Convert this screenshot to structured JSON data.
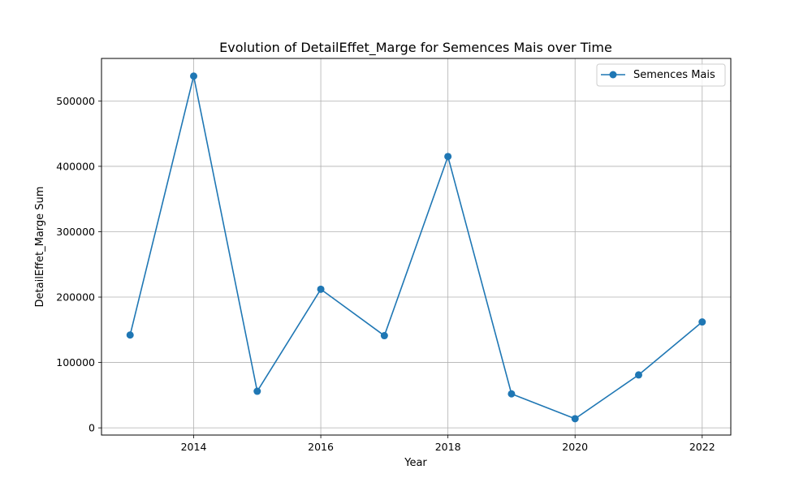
{
  "chart_data": {
    "type": "line",
    "title": "Evolution of DetailEffet_Marge for Semences Mais over Time",
    "xlabel": "Year",
    "ylabel": "DetailEffet_Marge Sum",
    "x": [
      2013,
      2014,
      2015,
      2016,
      2017,
      2018,
      2019,
      2020,
      2021,
      2022
    ],
    "xlim": [
      2012.55,
      2022.45
    ],
    "ylim": [
      -11000,
      565000
    ],
    "x_ticks": [
      "2014",
      "2016",
      "2018",
      "2020",
      "2022"
    ],
    "x_tick_values": [
      2014,
      2016,
      2018,
      2020,
      2022
    ],
    "y_ticks": [
      "0",
      "100000",
      "200000",
      "300000",
      "400000",
      "500000"
    ],
    "y_tick_values": [
      0,
      100000,
      200000,
      300000,
      400000,
      500000
    ],
    "grid": true,
    "legend_position": "top-right",
    "series": [
      {
        "name": "Semences Mais",
        "color": "#1f77b4",
        "marker": "circle",
        "values": [
          142000,
          538000,
          56000,
          212000,
          141000,
          415000,
          52000,
          14000,
          81000,
          162000
        ]
      }
    ]
  }
}
